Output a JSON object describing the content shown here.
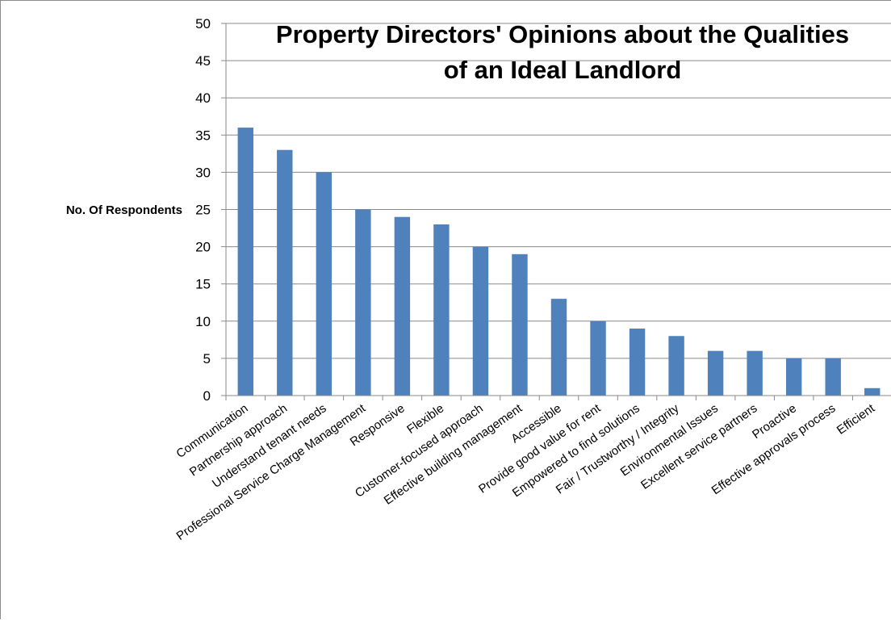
{
  "chart_data": {
    "type": "bar",
    "title": "Property Directors' Opinions about the Qualities of an Ideal Landlord",
    "title_lines": [
      "Property Directors' Opinions about the Qualities",
      "of an Ideal Landlord"
    ],
    "ylabel": "No. Of Respondents",
    "xlabel": "",
    "ylim": [
      0,
      50
    ],
    "ytick_step": 5,
    "grid": true,
    "legend": "none",
    "bar_color": "#4F81BD",
    "categories": [
      "Communication",
      "Partnership approach",
      "Understand tenant needs",
      "Professional Service Charge Management",
      "Responsive",
      "Flexible",
      "Customer-focused approach",
      "Effective building management",
      "Accessible",
      "Provide good value for rent",
      "Empowered to find solutions",
      "Fair / Trustworthy / Integrity",
      "Environmental Issues",
      "Excellent service partners",
      "Proactive",
      "Effective approvals process",
      "Efficient"
    ],
    "values": [
      36,
      33,
      30,
      25,
      24,
      23,
      20,
      19,
      13,
      10,
      9,
      8,
      6,
      6,
      5,
      5,
      1
    ]
  }
}
